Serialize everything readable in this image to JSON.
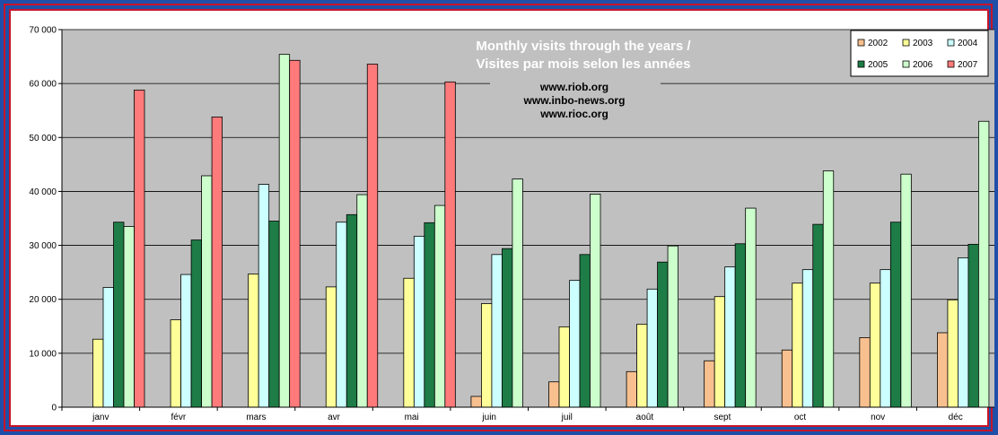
{
  "chart_data": {
    "type": "bar",
    "title_lines": [
      "Monthly visits through the years /",
      "Visites par mois selon les années"
    ],
    "annotation_lines": [
      "www.riob.org",
      "www.inbo-news.org",
      "www.rioc.org"
    ],
    "xlabel": "",
    "ylabel": "",
    "ylim": [
      0,
      70000
    ],
    "y_ticks": [
      "0",
      "10 000",
      "20 000",
      "30 000",
      "40 000",
      "50 000",
      "60 000",
      "70 000"
    ],
    "grid": true,
    "legend_position": "top-right",
    "categories": [
      "janv",
      "févr",
      "mars",
      "avr",
      "mai",
      "juin",
      "juil",
      "août",
      "sept",
      "oct",
      "nov",
      "déc"
    ],
    "series": [
      {
        "name": "2002",
        "color": "#f9c08f",
        "values": [
          null,
          null,
          null,
          null,
          null,
          2000,
          4700,
          6600,
          8600,
          10600,
          12900,
          13800
        ]
      },
      {
        "name": "2003",
        "color": "#ffff99",
        "values": [
          12600,
          16200,
          24700,
          22300,
          23900,
          19200,
          14900,
          15400,
          20500,
          23000,
          23000,
          19900
        ]
      },
      {
        "name": "2004",
        "color": "#ccffff",
        "values": [
          22200,
          24600,
          41300,
          34300,
          31700,
          28300,
          23500,
          21900,
          26000,
          25500,
          25500,
          27700
        ]
      },
      {
        "name": "2005",
        "color": "#1e7c46",
        "values": [
          34300,
          31000,
          34500,
          35700,
          34200,
          29400,
          28300,
          26900,
          30300,
          33900,
          34300,
          30200
        ]
      },
      {
        "name": "2006",
        "color": "#ccffcc",
        "values": [
          33500,
          42900,
          65400,
          39400,
          37400,
          42300,
          39500,
          29900,
          36900,
          43800,
          43200,
          53000
        ]
      },
      {
        "name": "2007",
        "color": "#ff7b7b",
        "values": [
          58800,
          53800,
          64300,
          63600,
          60300,
          null,
          null,
          null,
          null,
          null,
          null,
          null
        ]
      }
    ]
  }
}
